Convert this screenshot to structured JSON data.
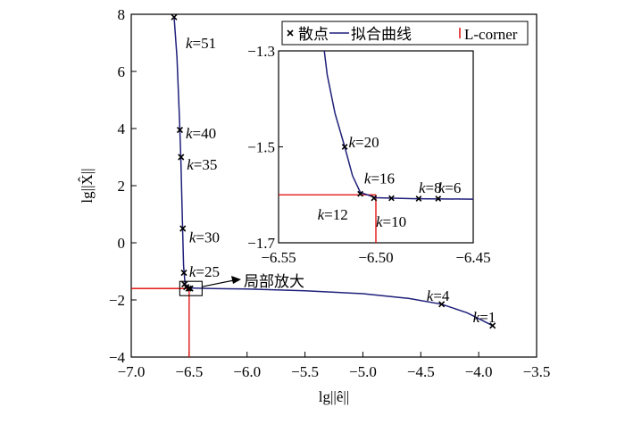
{
  "chart_data": [
    {
      "id": "main",
      "type": "line",
      "xlabel": "lg||ê||",
      "ylabel": "lg||X̂||",
      "xlim": [
        -7.0,
        -3.5
      ],
      "ylim": [
        -4,
        8
      ],
      "xticks": [
        -7.0,
        -6.5,
        -6.0,
        -5.5,
        -5.0,
        -4.5,
        -4.0,
        -3.5
      ],
      "xtick_labels": [
        "−7.0",
        "−6.5",
        "−6.0",
        "−5.5",
        "−5.0",
        "−4.5",
        "−4.0",
        "−3.5"
      ],
      "yticks": [
        -4,
        -2,
        0,
        2,
        4,
        6,
        8
      ],
      "ytick_labels": [
        "−4",
        "−2",
        "0",
        "2",
        "4",
        "6",
        "8"
      ],
      "grid": false,
      "series": [
        {
          "name": "散点",
          "style": "scatter",
          "marker": "x",
          "color": "#000000",
          "points": [
            {
              "x": -6.63,
              "y": 7.9
            },
            {
              "x": -6.58,
              "y": 3.95
            },
            {
              "x": -6.57,
              "y": 3.0
            },
            {
              "x": -6.555,
              "y": 0.5
            },
            {
              "x": -6.545,
              "y": -1.05
            },
            {
              "x": -6.54,
              "y": -1.45
            },
            {
              "x": -6.525,
              "y": -1.55
            },
            {
              "x": -6.505,
              "y": -1.6
            },
            {
              "x": -6.49,
              "y": -1.6
            },
            {
              "x": -4.32,
              "y": -2.15
            },
            {
              "x": -3.88,
              "y": -2.9
            }
          ]
        },
        {
          "name": "拟合曲线",
          "style": "line",
          "color": "#1f1f7a",
          "points": [
            {
              "x": -6.63,
              "y": 7.9
            },
            {
              "x": -6.605,
              "y": 6.5
            },
            {
              "x": -6.585,
              "y": 4.5
            },
            {
              "x": -6.572,
              "y": 3.0
            },
            {
              "x": -6.56,
              "y": 1.0
            },
            {
              "x": -6.548,
              "y": -0.8
            },
            {
              "x": -6.535,
              "y": -1.45
            },
            {
              "x": -6.5,
              "y": -1.58
            },
            {
              "x": -6.3,
              "y": -1.6
            },
            {
              "x": -6.0,
              "y": -1.62
            },
            {
              "x": -5.5,
              "y": -1.68
            },
            {
              "x": -5.0,
              "y": -1.78
            },
            {
              "x": -4.6,
              "y": -1.95
            },
            {
              "x": -4.32,
              "y": -2.15
            },
            {
              "x": -4.1,
              "y": -2.45
            },
            {
              "x": -3.88,
              "y": -2.9
            }
          ]
        },
        {
          "name": "L-corner",
          "style": "line",
          "color": "#e00000",
          "corner": {
            "x": -6.5,
            "y": -1.6
          }
        }
      ],
      "annotations": [
        {
          "label": "k",
          "value": "=51",
          "x": -6.53,
          "y": 7.0
        },
        {
          "label": "k",
          "value": "=40",
          "x": -6.53,
          "y": 3.85
        },
        {
          "label": "k",
          "value": "=35",
          "x": -6.52,
          "y": 2.75
        },
        {
          "label": "k",
          "value": "=30",
          "x": -6.5,
          "y": 0.2
        },
        {
          "label": "k",
          "value": "=25",
          "x": -6.5,
          "y": -1.0
        },
        {
          "label": "k",
          "value": "=4",
          "x": -4.45,
          "y": -1.85
        },
        {
          "label": "k",
          "value": "=1",
          "x": -4.05,
          "y": -2.6
        }
      ],
      "zoom_callout": {
        "text": "局部放大",
        "box_x": [
          -6.55,
          -6.45
        ],
        "box_y": [
          -1.85,
          -1.35
        ]
      }
    },
    {
      "id": "inset",
      "type": "line",
      "xlim": [
        -6.55,
        -6.45
      ],
      "ylim": [
        -1.7,
        -1.3
      ],
      "xticks": [
        -6.55,
        -6.5,
        -6.45
      ],
      "xtick_labels": [
        "−6.55",
        "−6.50",
        "−6.45"
      ],
      "yticks": [
        -1.7,
        -1.5,
        -1.3
      ],
      "ytick_labels": [
        "−1.7",
        "−1.5",
        "−1.3"
      ],
      "series": [
        {
          "name": "散点",
          "style": "scatter",
          "marker": "x",
          "points": [
            {
              "x": -6.516,
              "y": -1.5
            },
            {
              "x": -6.508,
              "y": -1.598
            },
            {
              "x": -6.501,
              "y": -1.607
            },
            {
              "x": -6.492,
              "y": -1.607
            },
            {
              "x": -6.478,
              "y": -1.608
            },
            {
              "x": -6.468,
              "y": -1.608
            }
          ]
        },
        {
          "name": "拟合曲线",
          "style": "line",
          "points": [
            {
              "x": -6.5265,
              "y": -1.3
            },
            {
              "x": -6.525,
              "y": -1.35
            },
            {
              "x": -6.521,
              "y": -1.43
            },
            {
              "x": -6.516,
              "y": -1.5
            },
            {
              "x": -6.512,
              "y": -1.56
            },
            {
              "x": -6.508,
              "y": -1.595
            },
            {
              "x": -6.5,
              "y": -1.606
            },
            {
              "x": -6.48,
              "y": -1.608
            },
            {
              "x": -6.45,
              "y": -1.609
            }
          ]
        },
        {
          "name": "L-corner",
          "style": "line",
          "corner": {
            "x": -6.5,
            "y": -1.6
          }
        }
      ],
      "annotations": [
        {
          "label": "k",
          "value": "=20",
          "x": -6.514,
          "y": -1.49
        },
        {
          "label": "k",
          "value": "=16",
          "x": -6.506,
          "y": -1.565
        },
        {
          "label": "k",
          "value": "=8",
          "x": -6.478,
          "y": -1.585
        },
        {
          "label": "k",
          "value": "=6",
          "x": -6.468,
          "y": -1.585
        },
        {
          "label": "k",
          "value": "=12",
          "x": -6.53,
          "y": -1.64
        },
        {
          "label": "k",
          "value": "=10",
          "x": -6.5,
          "y": -1.655
        }
      ]
    }
  ],
  "legend": {
    "placement": "top-right",
    "items": [
      {
        "symbol": "×",
        "label": "散点"
      },
      {
        "symbol": "line-navy",
        "label": "拟合曲线"
      },
      {
        "symbol": "line-red",
        "label": "L-corner"
      }
    ]
  },
  "colors": {
    "curve": "#1f1f7a",
    "corner": "#e00000",
    "marker": "#000000"
  }
}
